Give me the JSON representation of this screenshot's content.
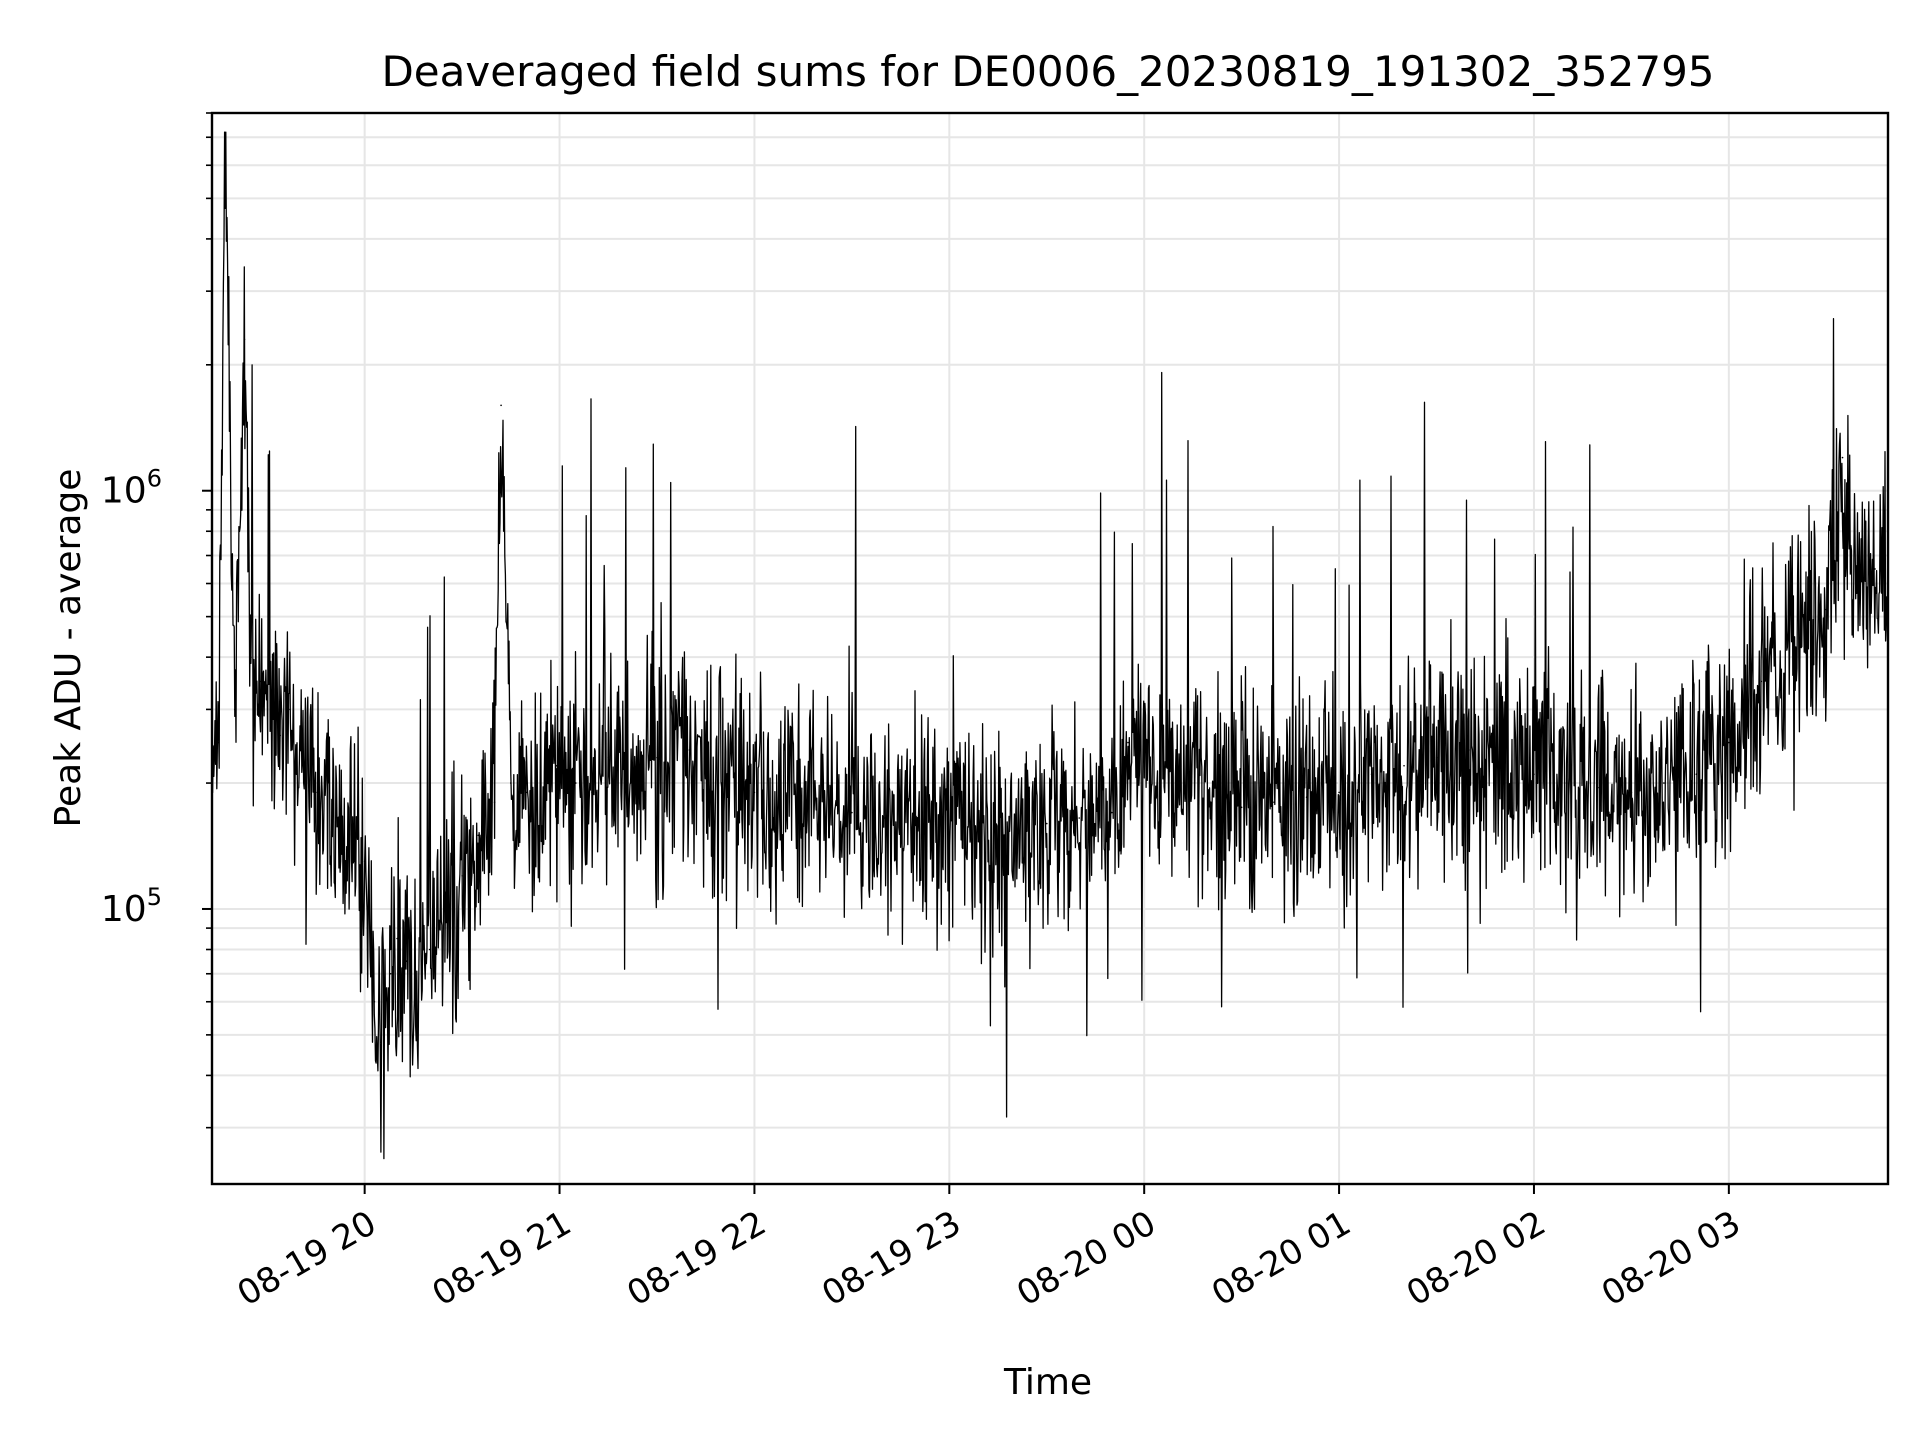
{
  "chart_data": {
    "type": "line",
    "title": "Deaveraged field sums for DE0006_20230819_191302_352795",
    "xlabel": "Time",
    "ylabel": "Peak ADU - average",
    "x_range": [
      "2023-08-19 19:13",
      "2023-08-20 03:49"
    ],
    "y_scale": "log",
    "ylim": [
      22000,
      8000000
    ],
    "grid": true,
    "line_color": "#000000",
    "grid_color": "#e6e6e6",
    "x_ticks": [
      {
        "time": "2023-08-19 20:00",
        "label": "08-19 20"
      },
      {
        "time": "2023-08-19 21:00",
        "label": "08-19 21"
      },
      {
        "time": "2023-08-19 22:00",
        "label": "08-19 22"
      },
      {
        "time": "2023-08-19 23:00",
        "label": "08-19 23"
      },
      {
        "time": "2023-08-20 00:00",
        "label": "08-20 00"
      },
      {
        "time": "2023-08-20 01:00",
        "label": "08-20 01"
      },
      {
        "time": "2023-08-20 02:00",
        "label": "08-20 02"
      },
      {
        "time": "2023-08-20 03:00",
        "label": "08-20 03"
      }
    ],
    "y_ticks": [
      {
        "value": 100000,
        "base": "10",
        "exp": "5"
      },
      {
        "value": 1000000,
        "base": "10",
        "exp": "6"
      }
    ],
    "series": [
      {
        "x": [
          "2023-08-19 19:13",
          "2023-08-19 19:15",
          "2023-08-19 19:17",
          "2023-08-19 19:20",
          "2023-08-19 19:23",
          "2023-08-19 19:25",
          "2023-08-19 19:28",
          "2023-08-19 19:31",
          "2023-08-19 19:34",
          "2023-08-19 19:37",
          "2023-08-19 19:40",
          "2023-08-19 19:45",
          "2023-08-19 19:50",
          "2023-08-19 19:55",
          "2023-08-19 20:00",
          "2023-08-19 20:03",
          "2023-08-19 20:05",
          "2023-08-19 20:08",
          "2023-08-19 20:10",
          "2023-08-19 20:13",
          "2023-08-19 20:16",
          "2023-08-19 20:20",
          "2023-08-19 20:25",
          "2023-08-19 20:30",
          "2023-08-19 20:35",
          "2023-08-19 20:40",
          "2023-08-19 20:42",
          "2023-08-19 20:45",
          "2023-08-19 20:50",
          "2023-08-19 20:55",
          "2023-08-19 20:59",
          "2023-08-19 21:05",
          "2023-08-19 21:10",
          "2023-08-19 21:15",
          "2023-08-19 21:20",
          "2023-08-19 21:30",
          "2023-08-19 21:35",
          "2023-08-19 21:40",
          "2023-08-19 21:45",
          "2023-08-19 21:50",
          "2023-08-19 22:00",
          "2023-08-19 22:10",
          "2023-08-19 22:20",
          "2023-08-19 22:30",
          "2023-08-19 22:40",
          "2023-08-19 22:50",
          "2023-08-19 23:00",
          "2023-08-19 23:10",
          "2023-08-19 23:20",
          "2023-08-19 23:30",
          "2023-08-19 23:40",
          "2023-08-19 23:50",
          "2023-08-19 23:55",
          "2023-08-20 00:00",
          "2023-08-20 00:10",
          "2023-08-20 00:20",
          "2023-08-20 00:30",
          "2023-08-20 00:40",
          "2023-08-20 00:50",
          "2023-08-20 01:00",
          "2023-08-20 01:10",
          "2023-08-20 01:20",
          "2023-08-20 01:30",
          "2023-08-20 01:40",
          "2023-08-20 01:50",
          "2023-08-20 02:00",
          "2023-08-20 02:10",
          "2023-08-20 02:20",
          "2023-08-20 02:30",
          "2023-08-20 02:40",
          "2023-08-20 02:50",
          "2023-08-20 03:00",
          "2023-08-20 03:10",
          "2023-08-20 03:20",
          "2023-08-20 03:30",
          "2023-08-20 03:35",
          "2023-08-20 03:40",
          "2023-08-20 03:45",
          "2023-08-20 03:49"
        ],
        "y": [
          180000,
          250000,
          7000000,
          300000,
          2300000,
          400000,
          350000,
          280000,
          260000,
          300000,
          240000,
          190000,
          170000,
          160000,
          130000,
          60000,
          45000,
          70000,
          85000,
          75000,
          65000,
          80000,
          100000,
          120000,
          150000,
          180000,
          1600000,
          200000,
          190000,
          180000,
          220000,
          200000,
          190000,
          230000,
          210000,
          230000,
          250000,
          240000,
          220000,
          200000,
          190000,
          180000,
          175000,
          170000,
          165000,
          160000,
          150000,
          155000,
          150000,
          160000,
          165000,
          170000,
          250000,
          230000,
          200000,
          180000,
          175000,
          180000,
          185000,
          190000,
          210000,
          220000,
          230000,
          240000,
          220000,
          210000,
          200000,
          195000,
          190000,
          200000,
          210000,
          250000,
          350000,
          420000,
          520000,
          1200000,
          600000,
          650000,
          700000
        ]
      }
    ]
  }
}
